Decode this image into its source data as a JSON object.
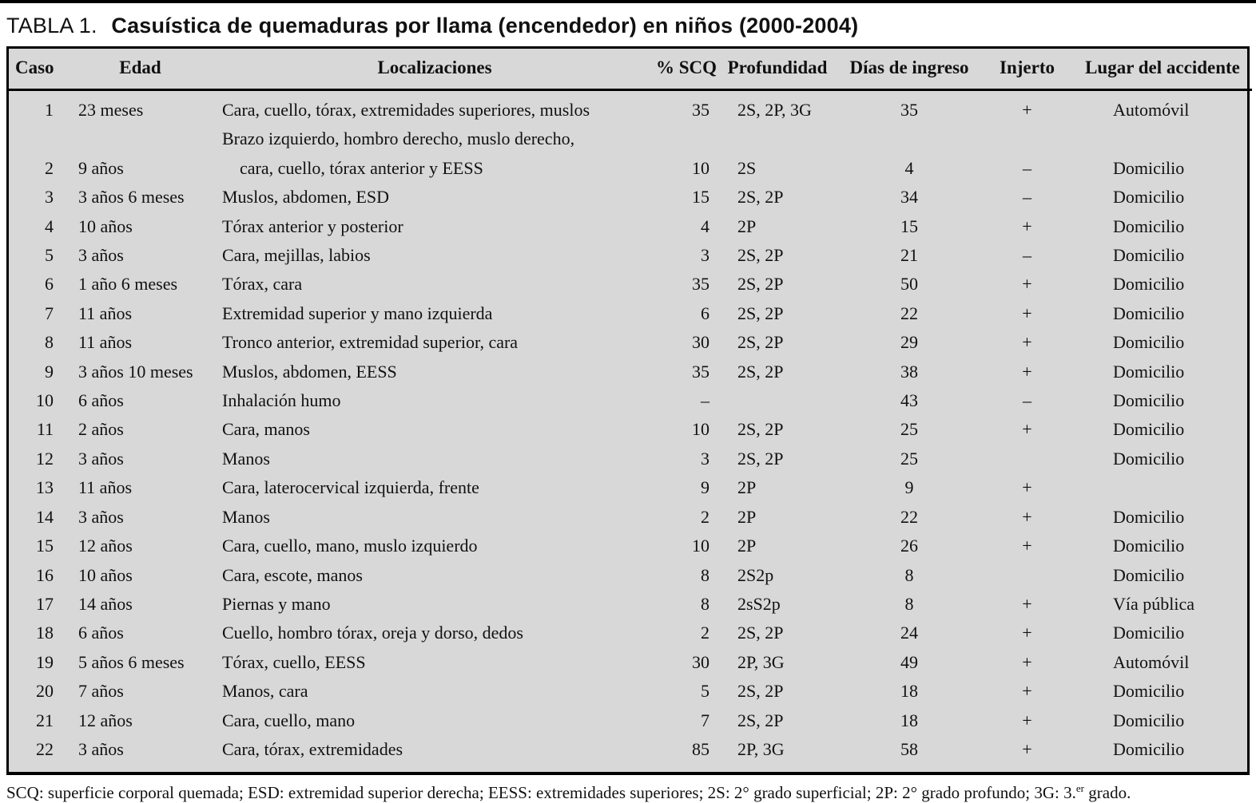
{
  "title": {
    "label": "TABLA 1.",
    "text": "Casuística de quemaduras por llama (encendedor) en niños (2000-2004)"
  },
  "table": {
    "headers": [
      "Caso",
      "Edad",
      "Localizaciones",
      "% SCQ",
      "Profundidad",
      "Días de ingreso",
      "Injerto",
      "Lugar del accidente"
    ],
    "rows": [
      {
        "caso": "1",
        "edad": "23 meses",
        "loc": [
          "Cara, cuello, tórax, extremidades superiores, muslos"
        ],
        "scq": "35",
        "prof": "2S, 2P, 3G",
        "dias": "35",
        "injerto": "+",
        "lugar": "Automóvil"
      },
      {
        "caso": "2",
        "edad": "9 años",
        "loc": [
          "Brazo izquierdo, hombro derecho, muslo derecho,",
          "cara, cuello, tórax anterior y EESS"
        ],
        "scq": "10",
        "prof": "2S",
        "dias": "4",
        "injerto": "–",
        "lugar": "Domicilio"
      },
      {
        "caso": "3",
        "edad": "3 años 6 meses",
        "loc": [
          "Muslos, abdomen, ESD"
        ],
        "scq": "15",
        "prof": "2S, 2P",
        "dias": "34",
        "injerto": "–",
        "lugar": "Domicilio"
      },
      {
        "caso": "4",
        "edad": "10 años",
        "loc": [
          "Tórax anterior y posterior"
        ],
        "scq": "4",
        "prof": "2P",
        "dias": "15",
        "injerto": "+",
        "lugar": "Domicilio"
      },
      {
        "caso": "5",
        "edad": "3 años",
        "loc": [
          "Cara, mejillas, labios"
        ],
        "scq": "3",
        "prof": "2S, 2P",
        "dias": "21",
        "injerto": "–",
        "lugar": "Domicilio"
      },
      {
        "caso": "6",
        "edad": "1 año 6 meses",
        "loc": [
          "Tórax, cara"
        ],
        "scq": "35",
        "prof": "2S, 2P",
        "dias": "50",
        "injerto": "+",
        "lugar": "Domicilio"
      },
      {
        "caso": "7",
        "edad": "11 años",
        "loc": [
          "Extremidad superior y mano izquierda"
        ],
        "scq": "6",
        "prof": "2S, 2P",
        "dias": "22",
        "injerto": "+",
        "lugar": "Domicilio"
      },
      {
        "caso": "8",
        "edad": "11 años",
        "loc": [
          "Tronco anterior, extremidad superior, cara"
        ],
        "scq": "30",
        "prof": "2S, 2P",
        "dias": "29",
        "injerto": "+",
        "lugar": "Domicilio"
      },
      {
        "caso": "9",
        "edad": "3 años 10 meses",
        "loc": [
          "Muslos, abdomen, EESS"
        ],
        "scq": "35",
        "prof": "2S, 2P",
        "dias": "38",
        "injerto": "+",
        "lugar": "Domicilio"
      },
      {
        "caso": "10",
        "edad": "6 años",
        "loc": [
          "Inhalación humo"
        ],
        "scq": "–",
        "prof": "",
        "dias": "43",
        "injerto": "–",
        "lugar": "Domicilio"
      },
      {
        "caso": "11",
        "edad": "2 años",
        "loc": [
          "Cara, manos"
        ],
        "scq": "10",
        "prof": "2S, 2P",
        "dias": "25",
        "injerto": "+",
        "lugar": "Domicilio"
      },
      {
        "caso": "12",
        "edad": "3 años",
        "loc": [
          "Manos"
        ],
        "scq": "3",
        "prof": "2S, 2P",
        "dias": "25",
        "injerto": "",
        "lugar": "Domicilio"
      },
      {
        "caso": "13",
        "edad": "11 años",
        "loc": [
          "Cara, laterocervical izquierda, frente"
        ],
        "scq": "9",
        "prof": "2P",
        "dias": "9",
        "injerto": "+",
        "lugar": ""
      },
      {
        "caso": "14",
        "edad": "3 años",
        "loc": [
          "Manos"
        ],
        "scq": "2",
        "prof": "2P",
        "dias": "22",
        "injerto": "+",
        "lugar": "Domicilio"
      },
      {
        "caso": "15",
        "edad": "12 años",
        "loc": [
          "Cara, cuello, mano, muslo izquierdo"
        ],
        "scq": "10",
        "prof": "2P",
        "dias": "26",
        "injerto": "+",
        "lugar": "Domicilio"
      },
      {
        "caso": "16",
        "edad": "10 años",
        "loc": [
          "Cara, escote, manos"
        ],
        "scq": "8",
        "prof": "2S2p",
        "dias": "8",
        "injerto": "",
        "lugar": "Domicilio"
      },
      {
        "caso": "17",
        "edad": "14 años",
        "loc": [
          "Piernas y mano"
        ],
        "scq": "8",
        "prof": "2sS2p",
        "dias": "8",
        "injerto": "+",
        "lugar": "Vía pública"
      },
      {
        "caso": "18",
        "edad": "6 años",
        "loc": [
          "Cuello, hombro tórax, oreja y dorso, dedos"
        ],
        "scq": "2",
        "prof": "2S, 2P",
        "dias": "24",
        "injerto": "+",
        "lugar": "Domicilio"
      },
      {
        "caso": "19",
        "edad": "5 años 6 meses",
        "loc": [
          "Tórax, cuello, EESS"
        ],
        "scq": "30",
        "prof": "2P, 3G",
        "dias": "49",
        "injerto": "+",
        "lugar": "Automóvil"
      },
      {
        "caso": "20",
        "edad": "7 años",
        "loc": [
          "Manos, cara"
        ],
        "scq": "5",
        "prof": "2S, 2P",
        "dias": "18",
        "injerto": "+",
        "lugar": "Domicilio"
      },
      {
        "caso": "21",
        "edad": "12 años",
        "loc": [
          "Cara, cuello, mano"
        ],
        "scq": "7",
        "prof": "2S, 2P",
        "dias": "18",
        "injerto": "+",
        "lugar": "Domicilio"
      },
      {
        "caso": "22",
        "edad": "3 años",
        "loc": [
          "Cara, tórax, extremidades"
        ],
        "scq": "85",
        "prof": "2P, 3G",
        "dias": "58",
        "injerto": "+",
        "lugar": "Domicilio"
      }
    ]
  },
  "footnote": {
    "main": "SCQ: superficie corporal quemada; ESD: extremidad superior derecha; EESS: extremidades superiores; 2S: 2° grado superficial; 2P: 2° grado profundo; 3G: 3.",
    "sup": "er",
    "tail": " grado."
  },
  "colors": {
    "table_background": "#d8d8d8",
    "border": "#000000",
    "text": "#111111",
    "page_background": "#ffffff"
  }
}
